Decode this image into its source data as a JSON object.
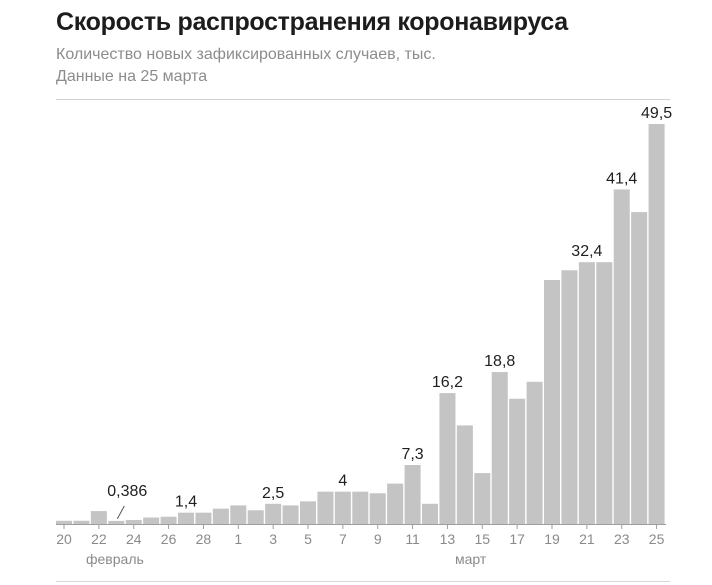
{
  "header": {
    "title": "Скорость распространения коронавируса",
    "subtitle_line1": "Количество новых зафиксированных случаев, тыс.",
    "subtitle_line2": "Данные на 25 марта"
  },
  "colors": {
    "bar": "#c4c4c4",
    "axis": "#9e9e9e",
    "rule": "#d0d0d0"
  },
  "chart_data": {
    "type": "bar",
    "title": "Скорость распространения коронавируса",
    "ylabel": "",
    "xlabel": "",
    "grid": false,
    "ylim": [
      0,
      52
    ],
    "categories": [
      "20",
      "21",
      "22",
      "23",
      "24",
      "25",
      "26",
      "27",
      "28",
      "29",
      "1",
      "2",
      "3",
      "4",
      "5",
      "6",
      "7",
      "8",
      "9",
      "10",
      "11",
      "12",
      "13",
      "14",
      "15",
      "16",
      "17",
      "18",
      "19",
      "20",
      "21",
      "22",
      "23",
      "24",
      "25"
    ],
    "values": [
      0.4,
      0.4,
      1.6,
      0.386,
      0.5,
      0.8,
      0.9,
      1.4,
      1.4,
      1.9,
      2.3,
      1.7,
      2.5,
      2.3,
      2.8,
      4,
      4,
      4,
      3.8,
      5.0,
      7.3,
      2.5,
      16.2,
      12.2,
      6.3,
      18.8,
      15.5,
      17.6,
      30.2,
      31.4,
      32.4,
      32.4,
      41.4,
      38.6,
      49.5
    ],
    "tick_labels": [
      {
        "index": 0,
        "label": "20"
      },
      {
        "index": 2,
        "label": "22"
      },
      {
        "index": 4,
        "label": "24"
      },
      {
        "index": 6,
        "label": "26"
      },
      {
        "index": 8,
        "label": "28"
      },
      {
        "index": 10,
        "label": "1"
      },
      {
        "index": 12,
        "label": "3"
      },
      {
        "index": 14,
        "label": "5"
      },
      {
        "index": 16,
        "label": "7"
      },
      {
        "index": 18,
        "label": "9"
      },
      {
        "index": 20,
        "label": "11"
      },
      {
        "index": 22,
        "label": "13"
      },
      {
        "index": 24,
        "label": "15"
      },
      {
        "index": 26,
        "label": "17"
      },
      {
        "index": 28,
        "label": "19"
      },
      {
        "index": 30,
        "label": "21"
      },
      {
        "index": 32,
        "label": "23"
      },
      {
        "index": 34,
        "label": "25"
      }
    ],
    "data_labels": [
      {
        "index": 3,
        "label": "0,386"
      },
      {
        "index": 7,
        "label": "1,4"
      },
      {
        "index": 12,
        "label": "2,5"
      },
      {
        "index": 16,
        "label": "4"
      },
      {
        "index": 20,
        "label": "7,3"
      },
      {
        "index": 22,
        "label": "16,2"
      },
      {
        "index": 25,
        "label": "18,8"
      },
      {
        "index": 30,
        "label": "32,4"
      },
      {
        "index": 32,
        "label": "41,4"
      },
      {
        "index": 34,
        "label": "49,5"
      }
    ],
    "month_labels": [
      {
        "index": 1,
        "label": "февраль"
      },
      {
        "index": 23,
        "label": "март"
      }
    ]
  }
}
